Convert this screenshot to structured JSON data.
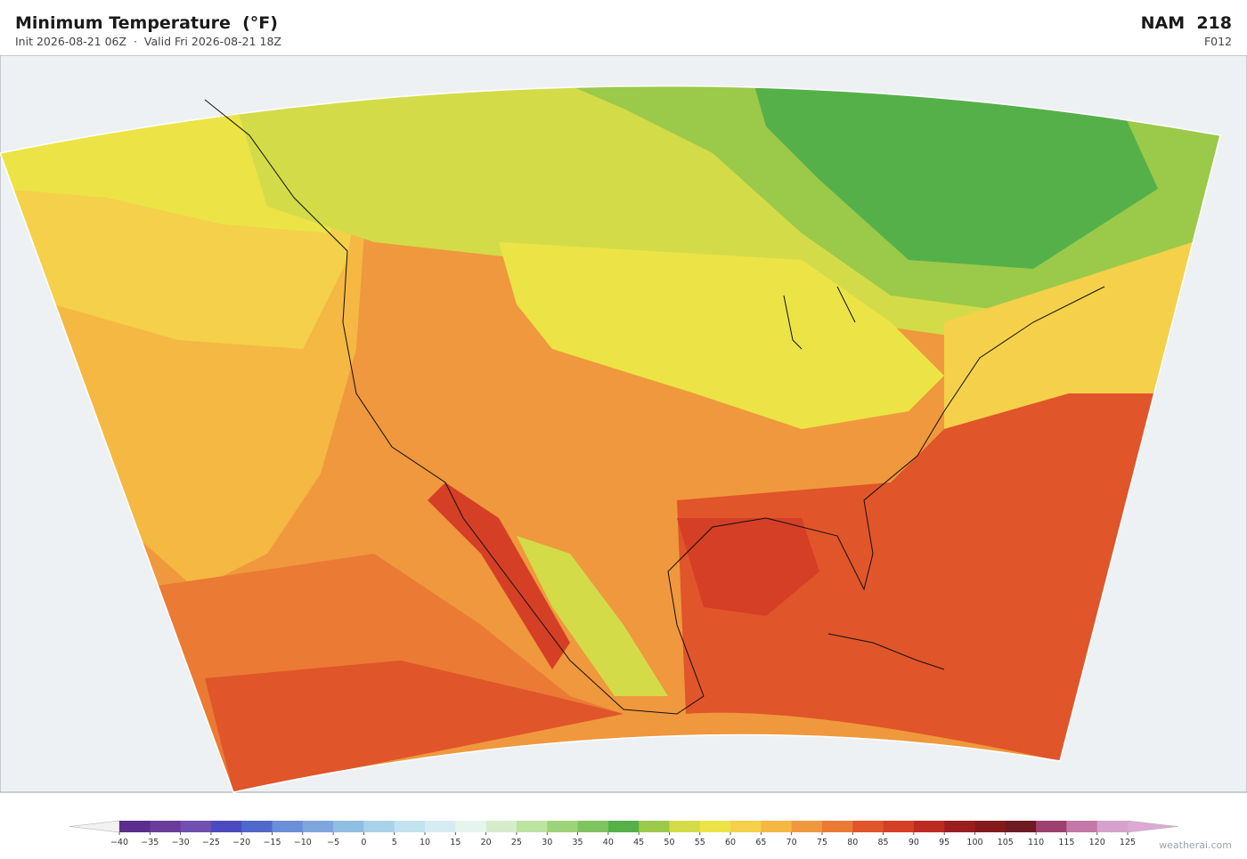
{
  "header": {
    "title": "Minimum Temperature  (°F)",
    "subtitle": "Init 2026-08-21 06Z  ·  Valid Fri 2026-08-21 18Z",
    "model": "NAM  218",
    "forecast_hour": "F012"
  },
  "colorbar": {
    "ticks": [
      {
        "value": -40,
        "label": "−40"
      },
      {
        "value": -35,
        "label": "−35"
      },
      {
        "value": -30,
        "label": "−30"
      },
      {
        "value": -25,
        "label": "−25"
      },
      {
        "value": -20,
        "label": "−20"
      },
      {
        "value": -15,
        "label": "−15"
      },
      {
        "value": -10,
        "label": "−10"
      },
      {
        "value": -5,
        "label": "−5"
      },
      0,
      5,
      10,
      15,
      20,
      25,
      30,
      35,
      40,
      45,
      50,
      55,
      60,
      65,
      70,
      75,
      80,
      85,
      90,
      95,
      100,
      105,
      110,
      115,
      120,
      125
    ],
    "colors": [
      "#5b2d8e",
      "#6a3d9a",
      "#7050b0",
      "#4b4bbf",
      "#5068cc",
      "#6a8fd8",
      "#7fa6dc",
      "#8fbee3",
      "#a9d2ea",
      "#c2e2ef",
      "#d6ecf2",
      "#e6f4ee",
      "#d6eccc",
      "#bde3a0",
      "#9dd47a",
      "#7fc45f",
      "#56b04a",
      "#9bc94a",
      "#d3dc48",
      "#ece446",
      "#f5d04a",
      "#f5b843",
      "#f0983d",
      "#eb7a35",
      "#e0552a",
      "#d43f26",
      "#bd2a22",
      "#9c1d1e",
      "#851a1c",
      "#6e1a22",
      "#9c4070",
      "#c378a8",
      "#d6a2cc"
    ],
    "under_color": "#f2f2f2",
    "over_color": "#dcaad4"
  },
  "watermark": "weatherai.com"
}
